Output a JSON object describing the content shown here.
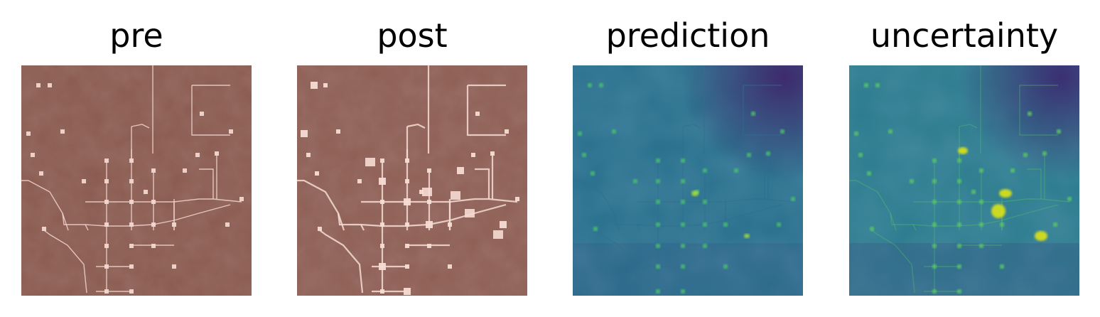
{
  "panels": [
    {
      "title": "pre",
      "kind": "satellite",
      "colors": {
        "ground": "#8a5a4f",
        "ground_dark": "#6f4a41",
        "feature": "#f2d6cf"
      }
    },
    {
      "title": "post",
      "kind": "satellite",
      "colors": {
        "ground": "#8e5e54",
        "ground_dark": "#704b43",
        "feature": "#f6dcd4"
      }
    },
    {
      "title": "prediction",
      "kind": "heatmap",
      "colors": {
        "low": "#3e2a6d",
        "mid": "#2f6f8e",
        "base": "#276f8c",
        "high": "#49c16d",
        "peak": "#a9dd3b"
      }
    },
    {
      "title": "uncertainty",
      "kind": "heatmap",
      "colors": {
        "low": "#3b2f72",
        "mid": "#2c6f8e",
        "base": "#2a7b8d",
        "high": "#5ac865",
        "peak": "#dde318"
      }
    }
  ]
}
